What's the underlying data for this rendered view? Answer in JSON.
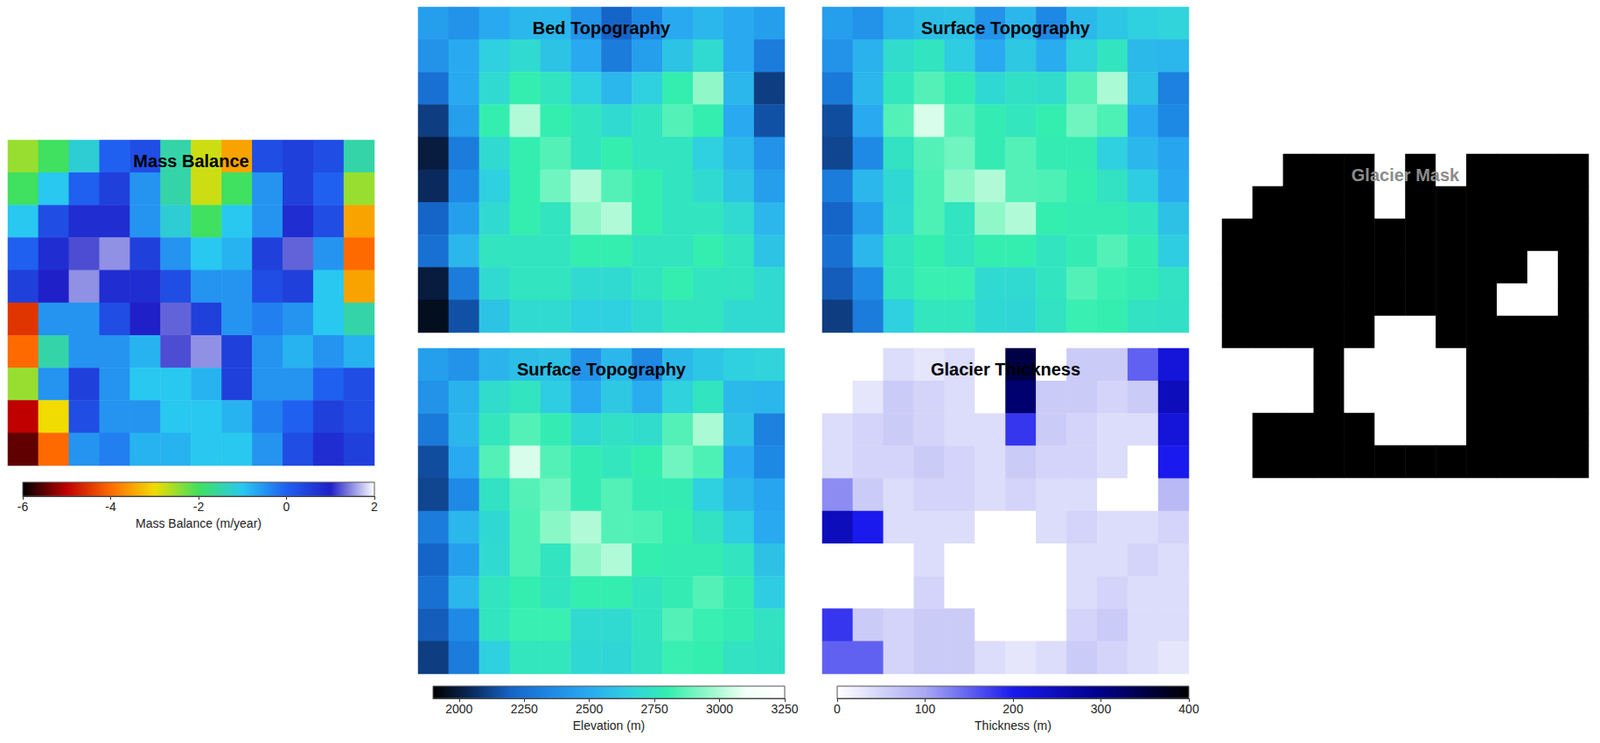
{
  "chart_data": [
    {
      "type": "heatmap",
      "title": "Mass Balance",
      "tick_labels": false,
      "zlim": [
        -6,
        2
      ],
      "colors": [
        "#000000",
        "#c00000",
        "#ff6a00",
        "#f0dc00",
        "#40e060",
        "#28c8f0",
        "#2060f0",
        "#2020c8",
        "#ffffff"
      ],
      "cells": [
        [
          -2.5,
          -2,
          -1.2,
          0,
          0.3,
          -1.5,
          -2.8,
          -3.5,
          0.3,
          0.5,
          0.3,
          -1.5
        ],
        [
          -2,
          -1,
          0,
          0.5,
          -0.5,
          -1.5,
          -2.8,
          -2,
          -0.5,
          0.5,
          0,
          -2.5
        ],
        [
          -1,
          0.3,
          0.8,
          0.8,
          -0.5,
          -1.2,
          -2,
          -1,
          -0.5,
          0.8,
          0.3,
          -3.5
        ],
        [
          0,
          0.8,
          1.2,
          1.5,
          0.5,
          -0.5,
          -1,
          -0.8,
          0.5,
          1.3,
          -0.5,
          -4
        ],
        [
          0.5,
          1,
          1.5,
          0.8,
          0.8,
          0.3,
          -0.5,
          -0.5,
          0.3,
          0.5,
          -1,
          -3.5
        ],
        [
          -4.5,
          -0.5,
          -0.5,
          0.3,
          1,
          1.3,
          0.5,
          -0.5,
          -0.3,
          -0.5,
          -1,
          -1.5
        ],
        [
          -4,
          -1.5,
          -0.5,
          -0.5,
          -0.8,
          1.2,
          1.5,
          0.5,
          -0.5,
          -0.8,
          -0.5,
          -0.8
        ],
        [
          -2.5,
          -0.5,
          0.5,
          -0.5,
          -1,
          -1,
          -0.8,
          0.5,
          -0.5,
          -0.5,
          0,
          0.3
        ],
        [
          -5,
          -3,
          0.3,
          -0.5,
          -0.5,
          -1,
          -1,
          -0.8,
          -0.3,
          0,
          0.5,
          0.3
        ],
        [
          -5.5,
          -4,
          -0.5,
          -0.3,
          -0.8,
          -0.8,
          -1,
          -1,
          -0.5,
          0.3,
          0.8,
          0.5
        ]
      ]
    },
    {
      "type": "colorbar",
      "xlabel": "Mass Balance (m/year)",
      "xlim": [
        -6,
        2
      ],
      "xticks": [
        -6,
        -4,
        -2,
        0,
        2
      ],
      "colors": [
        "#000000",
        "#c00000",
        "#ff6a00",
        "#f0dc00",
        "#40e060",
        "#28c8f0",
        "#2060f0",
        "#2020c8",
        "#ffffff"
      ]
    },
    {
      "type": "heatmap",
      "title": "Bed Topography",
      "tick_labels": false,
      "zlim": [
        1900,
        3250
      ],
      "colors": [
        "#000000",
        "#0a2a5e",
        "#1565c8",
        "#1e88e5",
        "#29aaf0",
        "#2fd0e0",
        "#34eeb0",
        "#90f8c8",
        "#f2fff8",
        "#ffffff"
      ],
      "cells": [
        [
          2450,
          2400,
          2500,
          2550,
          2550,
          2400,
          2200,
          2350,
          2500,
          2550,
          2500,
          2450
        ],
        [
          2400,
          2500,
          2650,
          2700,
          2600,
          2500,
          2300,
          2450,
          2600,
          2700,
          2500,
          2300
        ],
        [
          2250,
          2500,
          2700,
          2800,
          2750,
          2650,
          2550,
          2650,
          2800,
          2950,
          2550,
          2100
        ],
        [
          2100,
          2450,
          2800,
          3000,
          2800,
          2750,
          2700,
          2750,
          2850,
          2800,
          2500,
          2150
        ],
        [
          2000,
          2300,
          2700,
          2800,
          2850,
          2750,
          2800,
          2750,
          2750,
          2650,
          2550,
          2400
        ],
        [
          2050,
          2350,
          2650,
          2800,
          2900,
          3000,
          2850,
          2800,
          2750,
          2700,
          2600,
          2450
        ],
        [
          2200,
          2450,
          2700,
          2800,
          2750,
          2950,
          3000,
          2800,
          2750,
          2750,
          2700,
          2550
        ],
        [
          2250,
          2550,
          2750,
          2750,
          2750,
          2800,
          2800,
          2750,
          2750,
          2800,
          2750,
          2600
        ],
        [
          2000,
          2300,
          2700,
          2750,
          2750,
          2700,
          2700,
          2750,
          2800,
          2750,
          2750,
          2700
        ],
        [
          1950,
          2150,
          2600,
          2700,
          2700,
          2650,
          2650,
          2700,
          2750,
          2750,
          2700,
          2700
        ]
      ]
    },
    {
      "type": "heatmap",
      "title": "Surface Topography",
      "tick_labels": false,
      "zlim": [
        1900,
        3250
      ],
      "colors": [
        "#000000",
        "#0a2a5e",
        "#1565c8",
        "#1e88e5",
        "#29aaf0",
        "#2fd0e0",
        "#34eeb0",
        "#90f8c8",
        "#f2fff8",
        "#ffffff"
      ],
      "cells": [
        [
          2450,
          2400,
          2540,
          2580,
          2590,
          2400,
          2550,
          2350,
          2560,
          2610,
          2650,
          2670
        ],
        [
          2400,
          2530,
          2710,
          2750,
          2640,
          2500,
          2620,
          2510,
          2660,
          2750,
          2560,
          2550
        ],
        [
          2290,
          2550,
          2760,
          2850,
          2790,
          2690,
          2730,
          2710,
          2850,
          2990,
          2590,
          2320
        ],
        [
          2140,
          2500,
          2850,
          3060,
          2850,
          2790,
          2760,
          2800,
          2900,
          2840,
          2500,
          2350
        ],
        [
          2120,
          2360,
          2740,
          2850,
          2900,
          2790,
          2850,
          2790,
          2790,
          2650,
          2550,
          2480
        ],
        [
          2300,
          2550,
          2690,
          2840,
          2940,
          3000,
          2850,
          2840,
          2800,
          2740,
          2640,
          2500
        ],
        [
          2200,
          2450,
          2700,
          2840,
          2750,
          2950,
          3000,
          2800,
          2790,
          2790,
          2750,
          2590
        ],
        [
          2250,
          2550,
          2750,
          2800,
          2750,
          2800,
          2800,
          2750,
          2790,
          2850,
          2790,
          2640
        ],
        [
          2180,
          2360,
          2750,
          2810,
          2810,
          2700,
          2700,
          2750,
          2850,
          2810,
          2790,
          2740
        ],
        [
          2100,
          2300,
          2650,
          2760,
          2760,
          2690,
          2680,
          2740,
          2810,
          2800,
          2740,
          2730
        ]
      ]
    },
    {
      "type": "heatmap",
      "title": "Surface Topography",
      "tick_labels": false,
      "zlim": [
        1900,
        3250
      ],
      "colors": [
        "#000000",
        "#0a2a5e",
        "#1565c8",
        "#1e88e5",
        "#29aaf0",
        "#2fd0e0",
        "#34eeb0",
        "#90f8c8",
        "#f2fff8",
        "#ffffff"
      ],
      "cells": [
        [
          2450,
          2400,
          2540,
          2580,
          2590,
          2400,
          2550,
          2350,
          2560,
          2610,
          2650,
          2670
        ],
        [
          2400,
          2530,
          2710,
          2750,
          2640,
          2500,
          2620,
          2510,
          2660,
          2750,
          2560,
          2550
        ],
        [
          2290,
          2550,
          2760,
          2850,
          2790,
          2690,
          2730,
          2710,
          2850,
          2990,
          2590,
          2320
        ],
        [
          2140,
          2500,
          2850,
          3060,
          2850,
          2790,
          2760,
          2800,
          2900,
          2840,
          2500,
          2350
        ],
        [
          2120,
          2360,
          2740,
          2850,
          2900,
          2790,
          2850,
          2790,
          2790,
          2650,
          2550,
          2480
        ],
        [
          2300,
          2550,
          2690,
          2840,
          2940,
          3000,
          2850,
          2840,
          2800,
          2740,
          2640,
          2500
        ],
        [
          2200,
          2450,
          2700,
          2840,
          2750,
          2950,
          3000,
          2800,
          2790,
          2790,
          2750,
          2590
        ],
        [
          2250,
          2550,
          2750,
          2800,
          2750,
          2800,
          2800,
          2750,
          2790,
          2850,
          2790,
          2640
        ],
        [
          2180,
          2360,
          2750,
          2810,
          2810,
          2700,
          2700,
          2750,
          2850,
          2810,
          2790,
          2740
        ],
        [
          2100,
          2300,
          2650,
          2760,
          2760,
          2690,
          2680,
          2740,
          2810,
          2800,
          2740,
          2730
        ]
      ]
    },
    {
      "type": "heatmap",
      "title": "Glacier Thickness",
      "tick_labels": false,
      "zlim": [
        0,
        400
      ],
      "colors": [
        "#ffffff",
        "#a8a8f4",
        "#1a1aee",
        "#00008a",
        "#000000"
      ],
      "cells": [
        [
          0,
          0,
          40,
          30,
          40,
          0,
          350,
          0,
          60,
          60,
          150,
          220
        ],
        [
          0,
          30,
          60,
          50,
          40,
          0,
          320,
          60,
          60,
          50,
          60,
          250
        ],
        [
          40,
          50,
          60,
          50,
          40,
          40,
          180,
          60,
          50,
          40,
          40,
          220
        ],
        [
          40,
          50,
          50,
          60,
          50,
          40,
          60,
          50,
          50,
          40,
          0,
          200
        ],
        [
          120,
          60,
          40,
          50,
          50,
          40,
          50,
          40,
          40,
          0,
          0,
          80
        ],
        [
          250,
          200,
          40,
          40,
          40,
          0,
          0,
          40,
          50,
          40,
          40,
          50
        ],
        [
          0,
          0,
          0,
          40,
          0,
          0,
          0,
          0,
          40,
          40,
          50,
          40
        ],
        [
          0,
          0,
          0,
          50,
          0,
          0,
          0,
          0,
          40,
          50,
          40,
          40
        ],
        [
          180,
          60,
          50,
          60,
          60,
          0,
          0,
          0,
          50,
          60,
          40,
          40
        ],
        [
          150,
          150,
          50,
          60,
          60,
          40,
          30,
          40,
          60,
          50,
          40,
          30
        ]
      ]
    },
    {
      "type": "colorbar",
      "xlabel": "Elevation (m)",
      "xlim": [
        1900,
        3250
      ],
      "xticks": [
        2000,
        2250,
        2500,
        2750,
        3000,
        3250
      ],
      "colors": [
        "#000000",
        "#0a2a5e",
        "#1565c8",
        "#1e88e5",
        "#29aaf0",
        "#2fd0e0",
        "#34eeb0",
        "#90f8c8",
        "#f2fff8",
        "#ffffff"
      ]
    },
    {
      "type": "colorbar",
      "xlabel": "Thickness (m)",
      "xlim": [
        0,
        400
      ],
      "xticks": [
        0,
        100,
        200,
        300,
        400
      ],
      "colors": [
        "#ffffff",
        "#a8a8f4",
        "#1a1aee",
        "#00008a",
        "#000000"
      ]
    },
    {
      "type": "heatmap",
      "title": "Glacier Mask",
      "tick_labels": false,
      "zlim": [
        0,
        1
      ],
      "colors": [
        "#ffffff",
        "#000000"
      ],
      "cells": [
        [
          0,
          0,
          1,
          1,
          1,
          0,
          1,
          0,
          1,
          1,
          1,
          1
        ],
        [
          0,
          1,
          1,
          1,
          1,
          0,
          1,
          1,
          1,
          1,
          1,
          1
        ],
        [
          1,
          1,
          1,
          1,
          1,
          1,
          1,
          1,
          1,
          1,
          1,
          1
        ],
        [
          1,
          1,
          1,
          1,
          1,
          1,
          1,
          1,
          1,
          1,
          0,
          1
        ],
        [
          1,
          1,
          1,
          1,
          1,
          1,
          1,
          1,
          1,
          0,
          0,
          1
        ],
        [
          1,
          1,
          1,
          1,
          1,
          0,
          0,
          1,
          1,
          1,
          1,
          1
        ],
        [
          0,
          0,
          0,
          1,
          0,
          0,
          0,
          0,
          1,
          1,
          1,
          1
        ],
        [
          0,
          0,
          0,
          1,
          0,
          0,
          0,
          0,
          1,
          1,
          1,
          1
        ],
        [
          0,
          1,
          1,
          1,
          1,
          0,
          0,
          0,
          1,
          1,
          1,
          1
        ],
        [
          0,
          1,
          1,
          1,
          1,
          1,
          1,
          1,
          1,
          1,
          1,
          1
        ]
      ]
    }
  ]
}
